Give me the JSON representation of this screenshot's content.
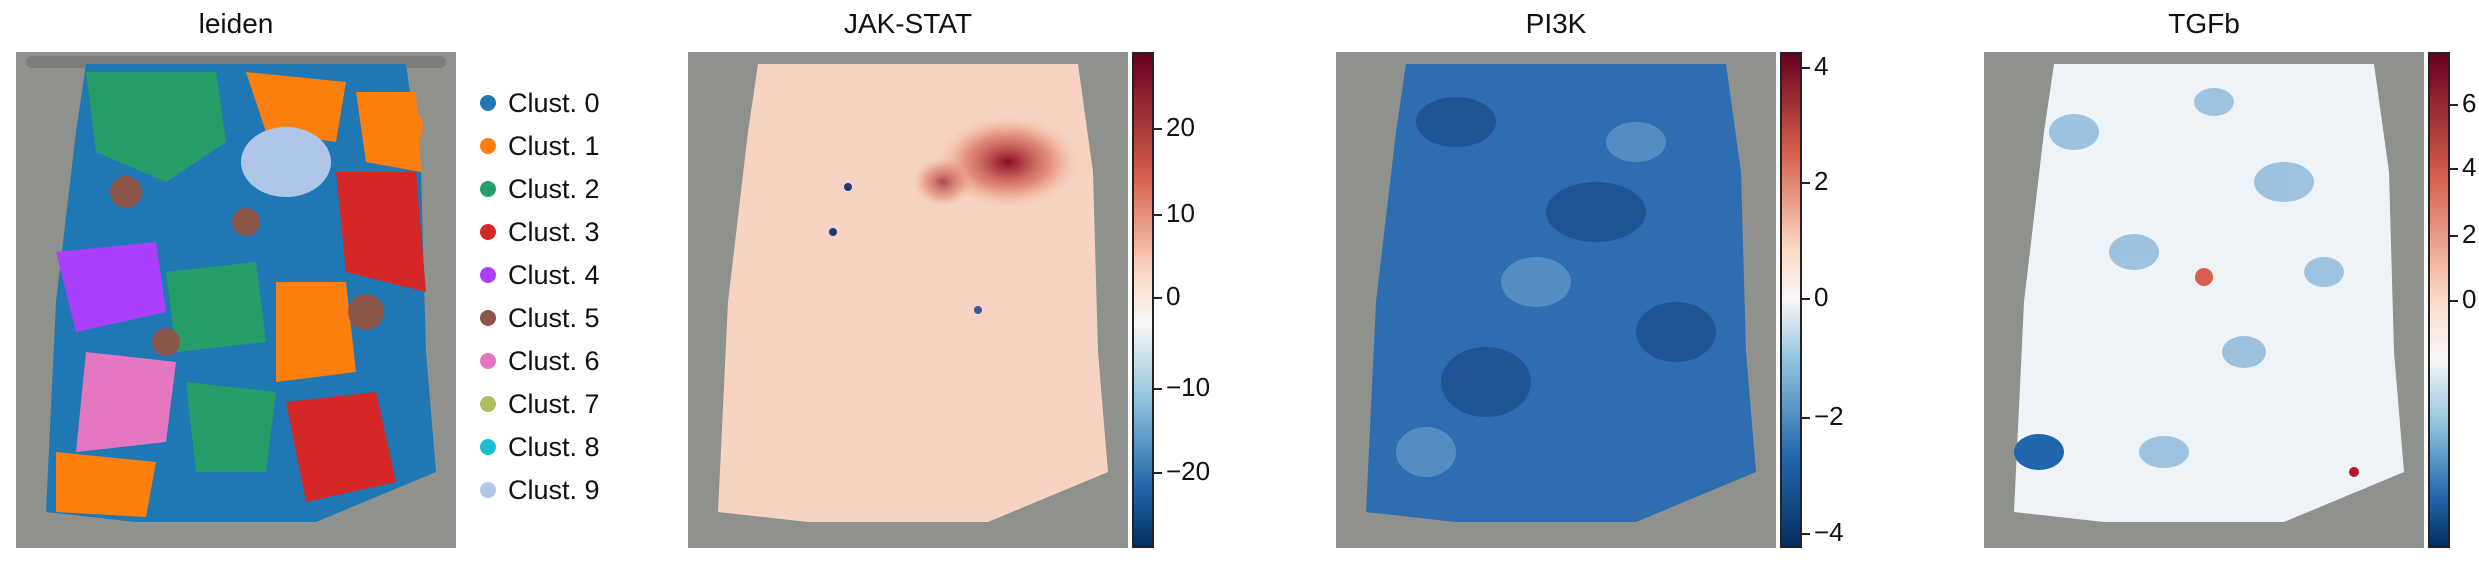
{
  "panels": [
    {
      "title": "leiden"
    },
    {
      "title": "JAK-STAT",
      "colorbar_ticks": [
        "20",
        "10",
        "0",
        "−10",
        "−20"
      ]
    },
    {
      "title": "PI3K",
      "colorbar_ticks": [
        "4",
        "2",
        "0",
        "−2",
        "−4"
      ]
    },
    {
      "title": "TGFb",
      "colorbar_ticks": [
        "6",
        "4",
        "2",
        "0"
      ]
    }
  ],
  "legend": [
    {
      "label": "Clust. 0",
      "color": "#1f77b4"
    },
    {
      "label": "Clust. 1",
      "color": "#ff7f0e"
    },
    {
      "label": "Clust. 2",
      "color": "#279e68"
    },
    {
      "label": "Clust. 3",
      "color": "#d62728"
    },
    {
      "label": "Clust. 4",
      "color": "#aa40fc"
    },
    {
      "label": "Clust. 5",
      "color": "#8c564b"
    },
    {
      "label": "Clust. 6",
      "color": "#e377c2"
    },
    {
      "label": "Clust. 7",
      "color": "#b5bd61"
    },
    {
      "label": "Clust. 8",
      "color": "#17becf"
    },
    {
      "label": "Clust. 9",
      "color": "#aec7e8"
    }
  ],
  "colors": {
    "background_tissue": "#8f918c",
    "cmap_low": "#053061",
    "cmap_mid": "#f7f7f7",
    "cmap_high": "#67001f"
  }
}
